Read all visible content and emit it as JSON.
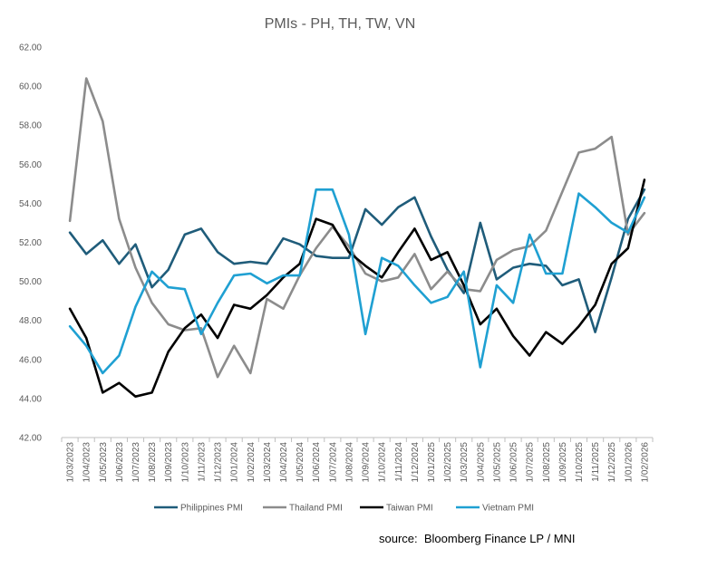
{
  "chart_data": {
    "type": "line",
    "title": "PMIs -    PH, TH, TW, VN",
    "source_note": "source:  Bloomberg Finance LP / MNI",
    "categories": [
      "1/03/2023",
      "1/04/2023",
      "1/05/2023",
      "1/06/2023",
      "1/07/2023",
      "1/08/2023",
      "1/09/2023",
      "1/10/2023",
      "1/11/2023",
      "1/12/2023",
      "1/01/2024",
      "1/02/2024",
      "1/03/2024",
      "1/04/2024",
      "1/05/2024",
      "1/06/2024",
      "1/07/2024",
      "1/08/2024",
      "1/09/2024",
      "1/10/2024",
      "1/11/2024",
      "1/12/2024",
      "1/01/2025",
      "1/02/2025",
      "1/03/2025",
      "1/04/2025",
      "1/05/2025",
      "1/06/2025",
      "1/07/2025",
      "1/08/2025",
      "1/09/2025",
      "1/10/2025",
      "1/11/2025",
      "1/12/2025",
      "1/01/2026",
      "1/02/2026"
    ],
    "yticks": [
      "62.00",
      "60.00",
      "58.00",
      "56.00",
      "54.00",
      "52.00",
      "50.00",
      "48.00",
      "46.00",
      "44.00",
      "42.00"
    ],
    "ylim": [
      42,
      62
    ],
    "series": [
      {
        "name": "Philippines PMI",
        "color": "#1f5c7a",
        "values": [
          52.5,
          51.4,
          52.1,
          50.9,
          51.9,
          49.7,
          50.6,
          52.4,
          52.7,
          51.5,
          50.9,
          51.0,
          50.9,
          52.2,
          51.9,
          51.3,
          51.2,
          51.2,
          53.7,
          52.9,
          53.8,
          54.3,
          52.3,
          50.6,
          49.4,
          53.0,
          50.1,
          50.7,
          50.9,
          50.8,
          49.8,
          50.1,
          47.4,
          50.2,
          53.2,
          54.7
        ]
      },
      {
        "name": "Thailand PMI",
        "color": "#8c8c8c",
        "values": [
          53.1,
          60.4,
          58.2,
          53.2,
          50.7,
          48.9,
          47.8,
          47.5,
          47.6,
          45.1,
          46.7,
          45.3,
          49.1,
          48.6,
          50.3,
          51.7,
          52.8,
          51.8,
          50.4,
          50.0,
          50.2,
          51.4,
          49.6,
          50.5,
          49.6,
          49.5,
          51.1,
          51.6,
          51.8,
          52.6,
          54.6,
          56.6,
          56.8,
          57.4,
          52.4,
          53.5
        ]
      },
      {
        "name": "Taiwan PMI",
        "color": "#000000",
        "values": [
          48.6,
          47.1,
          44.3,
          44.8,
          44.1,
          44.3,
          46.4,
          47.6,
          48.3,
          47.1,
          48.8,
          48.6,
          49.3,
          50.2,
          50.9,
          53.2,
          52.9,
          51.5,
          50.8,
          50.2,
          51.5,
          52.7,
          51.1,
          51.5,
          49.8,
          47.8,
          48.6,
          47.2,
          46.2,
          47.4,
          46.8,
          47.7,
          48.8,
          50.9,
          51.7,
          55.2
        ]
      },
      {
        "name": "Vietnam PMI",
        "color": "#1fa0d2",
        "values": [
          47.7,
          46.7,
          45.3,
          46.2,
          48.7,
          50.5,
          49.7,
          49.6,
          47.3,
          48.9,
          50.3,
          50.4,
          49.9,
          50.3,
          50.3,
          54.7,
          54.7,
          52.4,
          47.3,
          51.2,
          50.8,
          49.8,
          48.9,
          49.2,
          50.5,
          45.6,
          49.8,
          48.9,
          52.4,
          50.4,
          50.4,
          54.5,
          53.8,
          53.0,
          52.5,
          54.3
        ]
      }
    ]
  }
}
